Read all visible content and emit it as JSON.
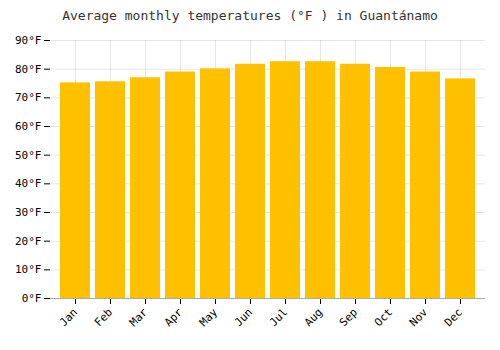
{
  "chart_data": {
    "type": "bar",
    "title": "Average monthly temperatures (°F ) in Guantánamo",
    "categories": [
      "Jan",
      "Feb",
      "Mar",
      "Apr",
      "May",
      "Jun",
      "Jul",
      "Aug",
      "Sep",
      "Oct",
      "Nov",
      "Dec"
    ],
    "values": [
      75.2,
      75.6,
      77.0,
      79.0,
      80.1,
      81.7,
      82.6,
      82.6,
      81.7,
      80.6,
      79.0,
      76.6
    ],
    "color": "#FFC000",
    "ylim": [
      0,
      90
    ],
    "yticks": [
      {
        "value": 0,
        "label": "0°F"
      },
      {
        "value": 10,
        "label": "10°F"
      },
      {
        "value": 20,
        "label": "20°F"
      },
      {
        "value": 30,
        "label": "30°F"
      },
      {
        "value": 40,
        "label": "40°F"
      },
      {
        "value": 50,
        "label": "50°F"
      },
      {
        "value": 60,
        "label": "60°F"
      },
      {
        "value": 70,
        "label": "70°F"
      },
      {
        "value": 80,
        "label": "80°F"
      },
      {
        "value": 90,
        "label": "90°F"
      }
    ],
    "grid": true
  }
}
